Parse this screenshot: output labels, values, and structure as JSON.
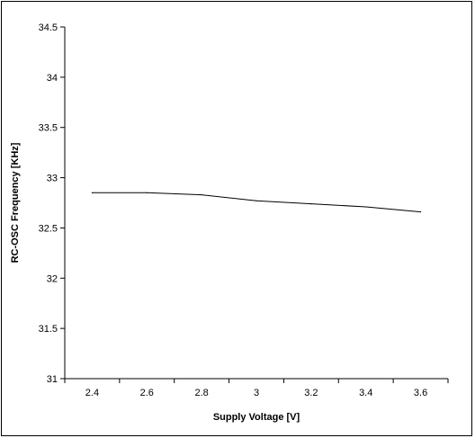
{
  "chart_data": {
    "type": "line",
    "title": "",
    "xlabel": "Supply Voltage [V]",
    "ylabel": "RC-OSC Frequency [KHz]",
    "x": [
      2.4,
      2.6,
      2.8,
      3.0,
      3.2,
      3.4,
      3.6
    ],
    "x_tick_labels": [
      "2.4",
      "2.6",
      "2.8",
      "3",
      "3.2",
      "3.4",
      "3.6"
    ],
    "y_tick_labels": [
      "31",
      "31.5",
      "32",
      "32.5",
      "33",
      "33.5",
      "34",
      "34.5"
    ],
    "xlim": [
      2.3,
      3.7
    ],
    "ylim": [
      31,
      34.5
    ],
    "y_ticks": [
      31,
      31.5,
      32,
      32.5,
      33,
      33.5,
      34,
      34.5
    ],
    "series": [
      {
        "values": [
          32.85,
          32.85,
          32.83,
          32.77,
          32.74,
          32.71,
          32.66
        ]
      }
    ],
    "grid": false,
    "legend": "none",
    "line_color": "#000000"
  }
}
